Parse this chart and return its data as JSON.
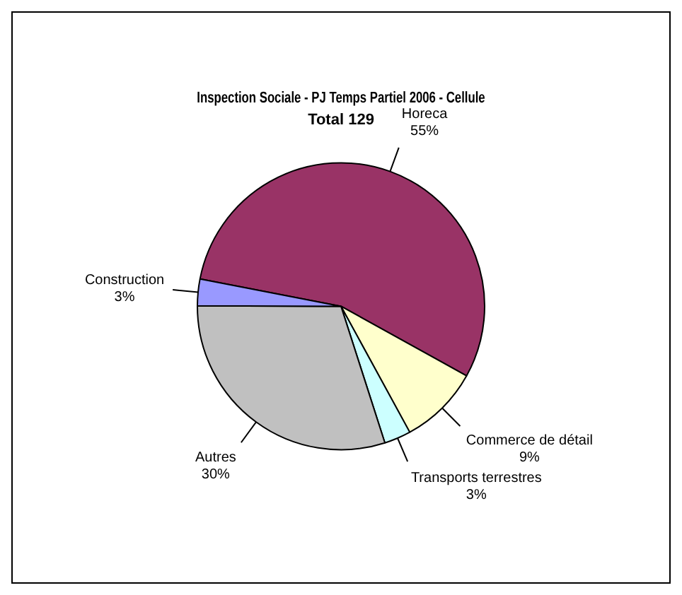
{
  "chart_data": {
    "type": "pie",
    "title": "Inspection Sociale - PJ Temps Partiel 2006 - Cellule",
    "subtitle": "Total 129",
    "categories": [
      "Horeca",
      "Commerce de détail",
      "Transports terrestres",
      "Autres",
      "Construction"
    ],
    "values": [
      55,
      9,
      3,
      30,
      3
    ],
    "value_labels": [
      "55%",
      "9%",
      "3%",
      "30%",
      "3%"
    ],
    "colors": [
      "#993366",
      "#ffffcc",
      "#ccffff",
      "#c0c0c0",
      "#9999ff"
    ],
    "legend": false
  }
}
